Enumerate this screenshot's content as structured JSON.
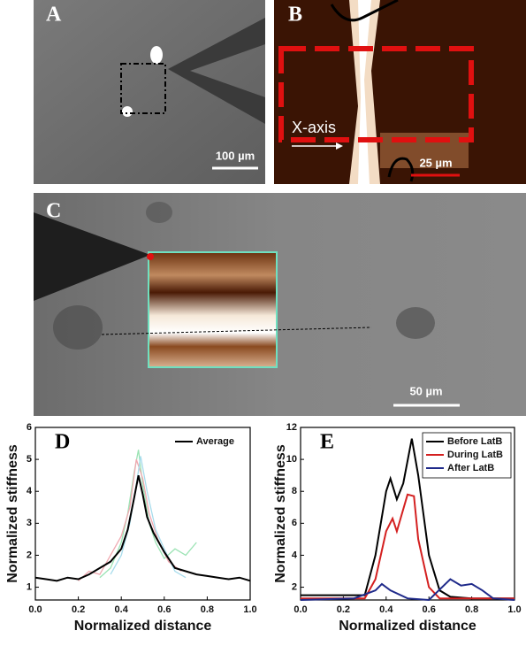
{
  "panels": [
    {
      "label": "A",
      "scale": "100 µm"
    },
    {
      "label": "B",
      "annotation": "X-axis",
      "scale": "25 µm"
    },
    {
      "label": "C",
      "scale": "50 µm"
    }
  ],
  "chart_data": [
    {
      "type": "line",
      "label": "D",
      "xlabel": "Normalized distance",
      "ylabel": "Normalized stiffness",
      "xlim": [
        0,
        1
      ],
      "ylim": [
        0.6,
        6
      ],
      "xticks": [
        {
          "value": 0,
          "label": "0.0"
        },
        0.2,
        0.4,
        0.6,
        0.8,
        {
          "value": 1,
          "label": "1.0"
        }
      ],
      "yticks": [
        1,
        2,
        3,
        4,
        5,
        6
      ],
      "legend": "upper-right",
      "series": [
        {
          "color": "#9be3b4",
          "x": [
            0.3,
            0.35,
            0.4,
            0.43,
            0.46,
            0.48,
            0.5,
            0.53,
            0.56,
            0.6,
            0.65,
            0.7,
            0.75
          ],
          "values": [
            1.3,
            1.6,
            2.4,
            3.3,
            4.6,
            5.3,
            4.2,
            3.0,
            2.4,
            1.9,
            2.2,
            2.0,
            2.4
          ]
        },
        {
          "color": "#f0a8b0",
          "x": [
            0.2,
            0.25,
            0.3,
            0.35,
            0.4,
            0.44,
            0.47,
            0.5,
            0.53,
            0.57,
            0.62,
            0.68
          ],
          "values": [
            1.2,
            1.5,
            1.4,
            2.0,
            2.6,
            3.5,
            5.0,
            4.4,
            3.3,
            2.5,
            1.8,
            1.5
          ]
        },
        {
          "color": "#a8dcec",
          "x": [
            0.35,
            0.4,
            0.44,
            0.47,
            0.49,
            0.52,
            0.56,
            0.6,
            0.65,
            0.7
          ],
          "values": [
            1.4,
            2.0,
            3.0,
            4.2,
            5.1,
            4.0,
            2.8,
            2.2,
            1.5,
            1.3
          ]
        },
        {
          "name": "Average",
          "color": "#000000",
          "x": [
            0,
            0.05,
            0.1,
            0.15,
            0.2,
            0.25,
            0.3,
            0.35,
            0.4,
            0.43,
            0.46,
            0.48,
            0.5,
            0.52,
            0.55,
            0.6,
            0.65,
            0.7,
            0.75,
            0.8,
            0.85,
            0.9,
            0.95,
            1.0
          ],
          "values": [
            1.3,
            1.25,
            1.2,
            1.3,
            1.25,
            1.4,
            1.6,
            1.8,
            2.2,
            2.8,
            3.8,
            4.5,
            3.9,
            3.2,
            2.7,
            2.1,
            1.6,
            1.5,
            1.4,
            1.35,
            1.3,
            1.25,
            1.3,
            1.2
          ]
        }
      ]
    },
    {
      "type": "line",
      "label": "E",
      "xlabel": "Normalized distance",
      "ylabel": "Normalized stiffness",
      "xlim": [
        0,
        1
      ],
      "ylim": [
        1.2,
        12
      ],
      "xticks": [
        {
          "value": 0,
          "label": "0.0"
        },
        0.2,
        0.4,
        0.6,
        0.8,
        {
          "value": 1,
          "label": "1.0"
        }
      ],
      "yticks": [
        2,
        4,
        6,
        8,
        10,
        12
      ],
      "legend": "upper-right",
      "series": [
        {
          "name": "Before LatB",
          "color": "#000000",
          "x": [
            0,
            0.3,
            0.35,
            0.4,
            0.42,
            0.45,
            0.48,
            0.52,
            0.55,
            0.6,
            0.65,
            0.7,
            0.8,
            1.0
          ],
          "values": [
            1.5,
            1.5,
            4,
            8,
            8.8,
            7.5,
            8.5,
            11.3,
            9,
            4,
            1.8,
            1.4,
            1.3,
            1.3
          ]
        },
        {
          "name": "During LatB",
          "color": "#d42020",
          "x": [
            0,
            0.3,
            0.35,
            0.4,
            0.43,
            0.45,
            0.5,
            0.53,
            0.55,
            0.6,
            0.65,
            1.0
          ],
          "values": [
            1.3,
            1.3,
            2.5,
            5.5,
            6.3,
            5.5,
            7.8,
            7.7,
            5,
            2,
            1.3,
            1.3
          ]
        },
        {
          "name": "After LatB",
          "color": "#1f2a8a",
          "x": [
            0,
            0.25,
            0.35,
            0.38,
            0.42,
            0.5,
            0.6,
            0.7,
            0.75,
            0.8,
            0.85,
            0.9,
            1.0
          ],
          "values": [
            1.2,
            1.3,
            1.8,
            2.2,
            1.8,
            1.3,
            1.2,
            2.5,
            2.1,
            2.2,
            1.8,
            1.3,
            1.2
          ]
        }
      ]
    }
  ]
}
